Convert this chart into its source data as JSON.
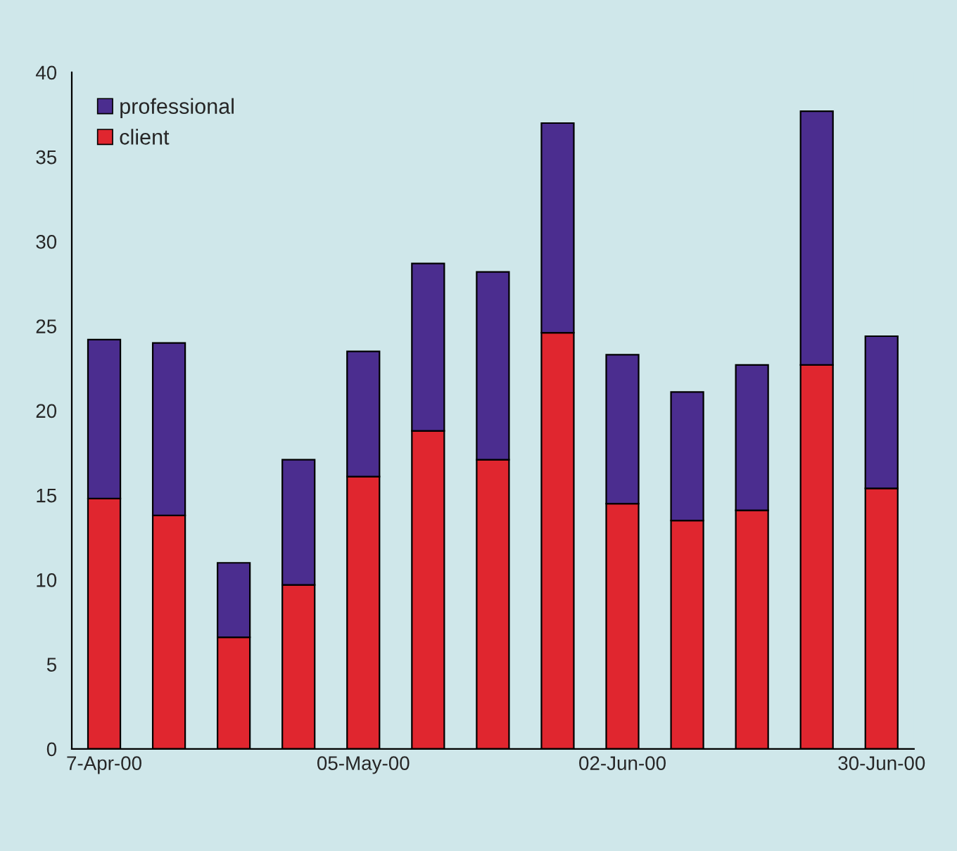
{
  "chart_data": {
    "type": "bar",
    "stacked": true,
    "categories": [
      "7-Apr-00",
      null,
      null,
      null,
      "05-May-00",
      null,
      null,
      null,
      "02-Jun-00",
      null,
      null,
      null,
      "30-Jun-00"
    ],
    "series": [
      {
        "name": "client",
        "color": "#e0262f",
        "values": [
          14.8,
          13.8,
          6.6,
          9.7,
          16.1,
          18.8,
          17.1,
          24.6,
          14.5,
          13.5,
          14.1,
          22.7,
          15.4
        ]
      },
      {
        "name": "professional",
        "color": "#4b2d8f",
        "values": [
          9.4,
          10.2,
          4.4,
          7.4,
          7.4,
          9.9,
          11.1,
          12.4,
          8.8,
          7.6,
          8.6,
          15.0,
          9.0
        ]
      }
    ],
    "ylim": [
      0,
      40
    ],
    "yticks": [
      0,
      5,
      10,
      15,
      20,
      25,
      30,
      35,
      40
    ],
    "grid": false,
    "legend": "top left"
  }
}
